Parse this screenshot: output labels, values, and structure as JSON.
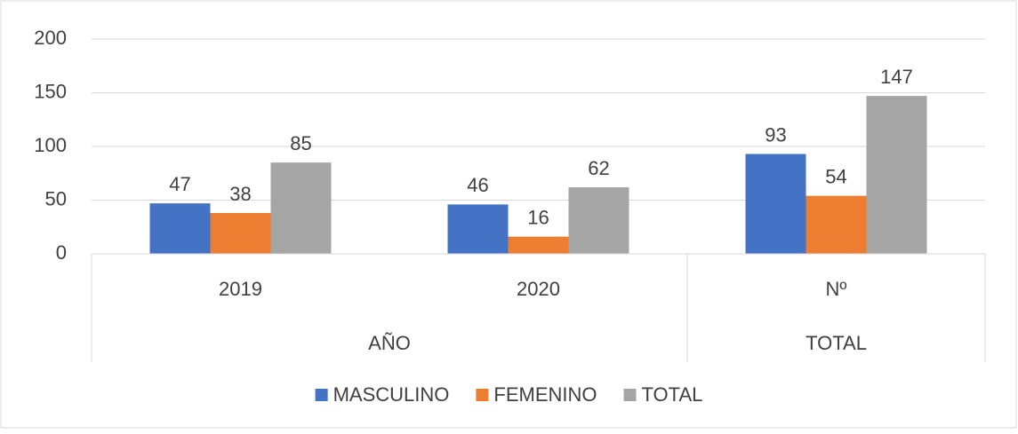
{
  "chart_data": {
    "type": "bar",
    "groups": [
      {
        "name": "AÑO",
        "categories": [
          "2019",
          "2020"
        ]
      },
      {
        "name": "TOTAL",
        "categories": [
          "Nº"
        ]
      }
    ],
    "series": [
      {
        "name": "MASCULINO",
        "color": "#4472c4",
        "values": [
          47,
          46,
          93
        ]
      },
      {
        "name": "FEMENINO",
        "color": "#ed7d31",
        "values": [
          38,
          16,
          54
        ]
      },
      {
        "name": "TOTAL",
        "color": "#a5a5a5",
        "values": [
          85,
          62,
          147
        ]
      }
    ],
    "ylim": [
      0,
      200
    ],
    "yticks": [
      0,
      50,
      100,
      150,
      200
    ],
    "grid": true,
    "legend": "bottom"
  }
}
